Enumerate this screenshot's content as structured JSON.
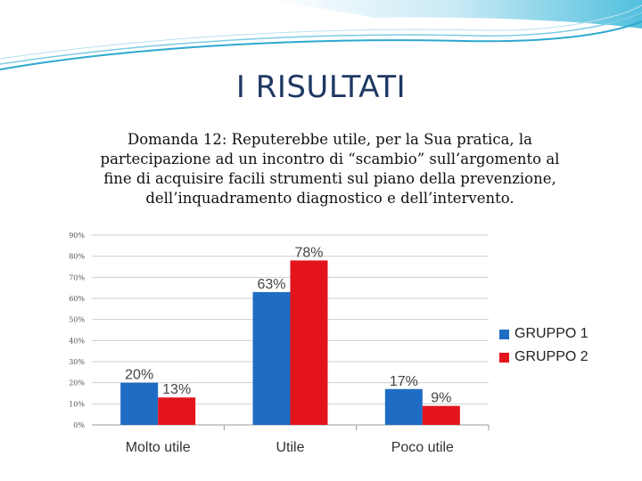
{
  "slide": {
    "title": "I RISULTATI",
    "question_lines": [
      "Domanda 12: Reputerebbe utile, per la Sua pratica, la",
      "partecipazione ad un incontro di “scambio” sull’argomento al",
      "fine di acquisire facili strumenti sul piano della prevenzione,",
      "dell’inquadramento diagnostico e dell’intervento."
    ]
  },
  "chart_data": {
    "type": "bar",
    "categories": [
      "Molto utile",
      "Utile",
      "Poco utile"
    ],
    "series": [
      {
        "name": "GRUPPO 1",
        "color": "#1f6cc4",
        "values": [
          20,
          63,
          17
        ],
        "labels": [
          "20%",
          "63%",
          "17%"
        ]
      },
      {
        "name": "GRUPPO 2",
        "color": "#e3141c",
        "values": [
          13,
          78,
          9
        ],
        "labels": [
          "13%",
          "78%",
          "9%"
        ]
      }
    ],
    "ylim": [
      0,
      90
    ],
    "yticks": [
      "0%",
      "10%",
      "20%",
      "30%",
      "40%",
      "50%",
      "60%",
      "70%",
      "80%",
      "90%"
    ],
    "grid": true,
    "legend": "right"
  }
}
